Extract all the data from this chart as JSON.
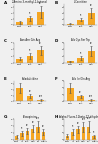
{
  "panels": [
    {
      "label": "A",
      "title": "2-Amino-3-methyl-1-butanol",
      "groups": [
        "CON",
        "LSIL",
        "HSIL"
      ],
      "values": [
        1.0,
        2.2,
        4.5
      ],
      "errors": [
        0.5,
        1.0,
        2.0
      ],
      "stars": [
        "",
        "*",
        "**"
      ],
      "ylim": [
        0,
        7
      ],
      "yticks": [
        0,
        2,
        4,
        6
      ]
    },
    {
      "label": "B",
      "title": "L-Carnitine",
      "groups": [
        "CON",
        "LSIL",
        "HSIL"
      ],
      "values": [
        0.5,
        1.8,
        4.0
      ],
      "errors": [
        0.2,
        0.6,
        1.6
      ],
      "stars": [
        "",
        "*",
        "**"
      ],
      "ylim": [
        0,
        7
      ],
      "yticks": [
        0,
        2,
        4,
        6
      ]
    },
    {
      "label": "C",
      "title": "Asn Asn Gln Arg",
      "groups": [
        "CON",
        "LSIL",
        "HSIL"
      ],
      "values": [
        1.3,
        2.1,
        3.8
      ],
      "errors": [
        0.5,
        0.8,
        1.3
      ],
      "stars": [
        "",
        "*",
        "**"
      ],
      "ylim": [
        0,
        6
      ],
      "yticks": [
        0,
        2,
        4,
        6
      ]
    },
    {
      "label": "D",
      "title": "Ala Cys Ser Trp",
      "groups": [
        "CON",
        "LSIL",
        "HSIL"
      ],
      "values": [
        0.5,
        1.5,
        3.5
      ],
      "errors": [
        0.2,
        0.6,
        1.4
      ],
      "stars": [
        "",
        "*",
        "**"
      ],
      "ylim": [
        0,
        6
      ],
      "yticks": [
        0,
        2,
        4,
        6
      ]
    },
    {
      "label": "E",
      "title": "Soladulcidine",
      "groups": [
        "CON",
        "LSIL",
        "HSIL"
      ],
      "values": [
        4.5,
        1.8,
        0.5
      ],
      "errors": [
        1.6,
        0.7,
        0.2
      ],
      "stars": [
        "",
        "**",
        "***"
      ],
      "ylim": [
        0,
        7
      ],
      "yticks": [
        0,
        2,
        4,
        6
      ]
    },
    {
      "label": "F",
      "title": "Ala Ile Gln Arg",
      "groups": [
        "CON",
        "LSIL",
        "HSIL"
      ],
      "values": [
        4.0,
        1.5,
        0.4
      ],
      "errors": [
        1.5,
        0.5,
        0.2
      ],
      "stars": [
        "",
        "**",
        "***"
      ],
      "ylim": [
        0,
        6
      ],
      "yticks": [
        0,
        2,
        4,
        6
      ]
    },
    {
      "label": "G",
      "title": "Prosopinine",
      "groups": [
        "CON",
        "IF",
        "LSIL",
        "HSIL",
        "CC",
        "TREAT"
      ],
      "values": [
        1.0,
        1.8,
        2.5,
        3.2,
        3.8,
        2.2
      ],
      "errors": [
        0.4,
        0.7,
        0.9,
        1.1,
        1.5,
        0.8
      ],
      "stars": [
        "",
        "*",
        "**",
        "**",
        "***",
        "**"
      ],
      "ylim": [
        0,
        6
      ],
      "yticks": [
        0,
        2,
        4,
        6
      ]
    },
    {
      "label": "H",
      "title": "6alpha-Fluoro-11beta,17-dihydroxy",
      "groups": [
        "CON",
        "IF",
        "LSIL",
        "HSIL",
        "CC",
        "TREAT"
      ],
      "values": [
        1.2,
        2.2,
        3.0,
        3.6,
        3.8,
        1.0
      ],
      "errors": [
        0.4,
        0.8,
        1.0,
        1.4,
        1.6,
        0.4
      ],
      "stars": [
        "",
        "*",
        "**",
        "***",
        "***",
        "*"
      ],
      "ylim": [
        0,
        6
      ],
      "yticks": [
        0,
        2,
        4,
        6
      ]
    }
  ],
  "bar_color": "#F5A623",
  "error_color": "#555555",
  "background_color": "#f0f0f0",
  "star_color": "black"
}
